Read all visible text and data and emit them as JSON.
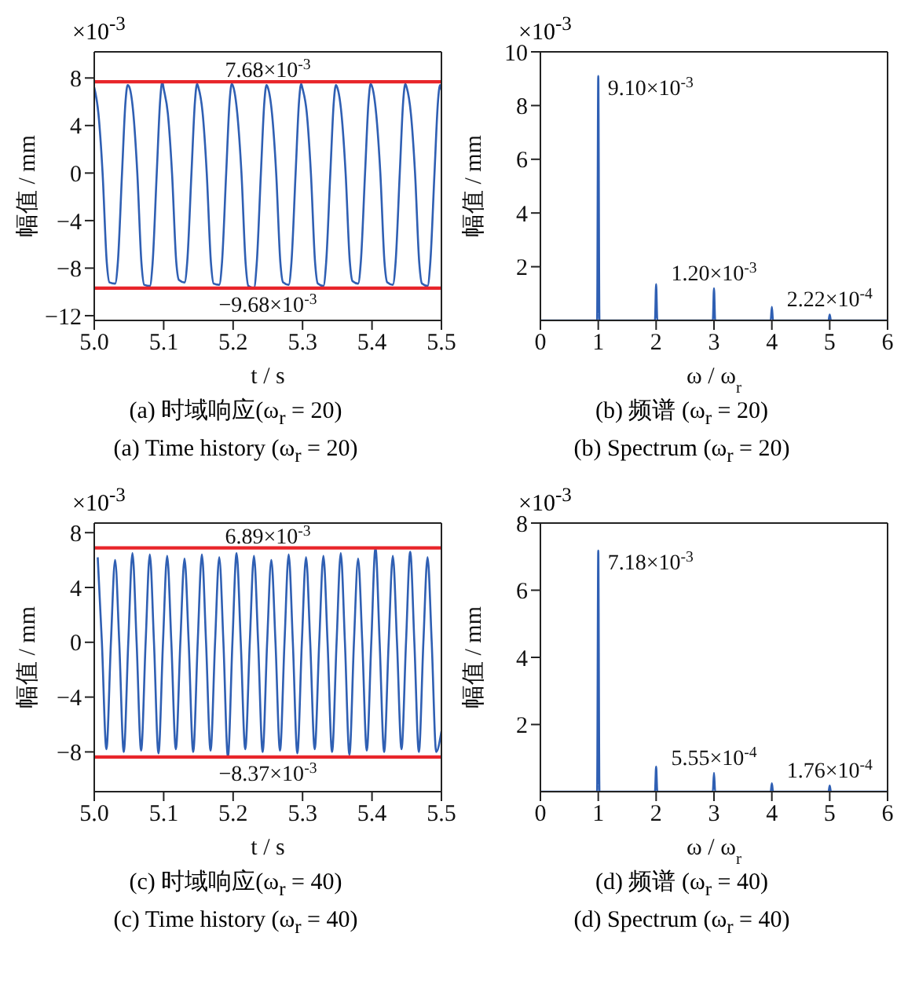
{
  "chart_data": [
    {
      "type": "line",
      "title": "(a) 时域响应(ω$_{r}$ = 20)",
      "subtitle": "(a) Time history (ω$_{r}$ = 20)",
      "xlabel": "t / s",
      "ylabel": "幅值 / mm",
      "annotations": [
        "×10$^{-3}$"
      ],
      "marker": "none",
      "line_style": "solid",
      "series": [
        {
          "color": "#2f5fb3",
          "x": [
            5,
            5.006,
            5.012,
            5.018,
            5.022,
            5.03,
            5.034,
            5.04,
            5.045,
            5.048,
            5.05,
            5.056,
            5.062,
            5.068,
            5.072,
            5.08,
            5.084,
            5.09,
            5.095,
            5.098,
            5.1,
            5.106,
            5.112,
            5.118,
            5.122,
            5.13,
            5.134,
            5.14,
            5.145,
            5.148,
            5.15,
            5.156,
            5.162,
            5.168,
            5.172,
            5.18,
            5.184,
            5.19,
            5.195,
            5.198,
            5.2,
            5.206,
            5.212,
            5.218,
            5.222,
            5.23,
            5.234,
            5.24,
            5.245,
            5.248,
            5.25,
            5.256,
            5.262,
            5.268,
            5.272,
            5.28,
            5.284,
            5.29,
            5.295,
            5.298,
            5.3,
            5.306,
            5.312,
            5.318,
            5.322,
            5.33,
            5.334,
            5.34,
            5.345,
            5.348,
            5.35,
            5.356,
            5.362,
            5.368,
            5.372,
            5.38,
            5.384,
            5.39,
            5.395,
            5.398,
            5.4,
            5.406,
            5.412,
            5.418,
            5.422,
            5.43,
            5.434,
            5.44,
            5.445,
            5.448,
            5.45,
            5.456,
            5.462,
            5.468,
            5.472,
            5.48,
            5.484,
            5.49,
            5.495,
            5.498,
            5.5
          ],
          "values": [
            7.2,
            5,
            0,
            -7.5,
            -9.2,
            -9.3,
            -7.5,
            0,
            6,
            7.4,
            7.3,
            5.2,
            0,
            -7.6,
            -9.4,
            -9.5,
            -7.6,
            0,
            6.2,
            7.68,
            7.1,
            5,
            0,
            -7.4,
            -9,
            -9.2,
            -7.4,
            0,
            6,
            7.5,
            7.2,
            5.1,
            0,
            -7.5,
            -9.3,
            -9.4,
            -7.5,
            0,
            6.1,
            7.5,
            7.3,
            5,
            0,
            -7.6,
            -9.5,
            -9.68,
            -7.6,
            0,
            6,
            7.4,
            7.2,
            5,
            0,
            -7.5,
            -9.2,
            -9.4,
            -7.5,
            0,
            6.1,
            7.5,
            7.1,
            5.1,
            0,
            -7.5,
            -9.3,
            -9.5,
            -7.5,
            0,
            6,
            7.4,
            7.2,
            5,
            0,
            -7.4,
            -9.1,
            -9.3,
            -7.4,
            0,
            6,
            7.5,
            7.3,
            5,
            0,
            -7.5,
            -9.2,
            -9.4,
            -7.5,
            0,
            6.1,
            7.5,
            7.2,
            5,
            0,
            -7.5,
            -9.3,
            -9.5,
            -7.5,
            0,
            6,
            7.4,
            7
          ]
        }
      ],
      "xlim": [
        5,
        5.5
      ],
      "xticks": [
        {
          "value": 5,
          "label": "5.0"
        },
        5.1,
        5.2,
        5.3,
        5.4,
        5.5
      ],
      "ylim": [
        -12.4,
        10.2
      ],
      "yticks": [
        {
          "value": -12,
          "label": "−12"
        },
        {
          "value": -8,
          "label": "−8"
        },
        {
          "value": -4,
          "label": "−4"
        },
        0,
        4,
        8
      ],
      "ref_lines": [
        {
          "axis": "y",
          "value": 7.68,
          "label": "7.68×10$^{-3}$",
          "color": "#e8252a"
        },
        {
          "axis": "y",
          "value": -9.68,
          "label": "−9.68×10$^{-3}$",
          "color": "#e8252a"
        }
      ]
    },
    {
      "type": "line",
      "title": "(b) 频谱 (ω$_{r}$ = 20)",
      "subtitle": "(b) Spectrum (ω$_{r}$ = 20)",
      "xlabel": "ω / ω$_{r}$",
      "ylabel": "幅值 / mm",
      "annotations": [
        "×10$^{-3}$",
        {
          "text": "9.10×10$^{-3}$",
          "x": 1,
          "y": 9.1
        },
        {
          "text": "1.20×10$^{-3}$",
          "x": 3,
          "y": 1.2
        },
        {
          "text": "2.22×10$^{-4}$",
          "x": 5,
          "y": 0.22
        }
      ],
      "marker": "none",
      "line_style": "solid",
      "series": [
        {
          "color": "#2f5fb3",
          "x": [
            0,
            0.98,
            1,
            1.02,
            1.98,
            2,
            2.02,
            2.98,
            3,
            3.02,
            3.98,
            4,
            4.02,
            4.98,
            5,
            5.02,
            6
          ],
          "values": [
            0,
            0,
            9.1,
            0,
            0,
            1.35,
            0,
            0,
            1.2,
            0,
            0,
            0.5,
            0,
            0,
            0.22,
            0,
            0
          ]
        }
      ],
      "xlim": [
        0,
        6
      ],
      "xticks": [
        0,
        1,
        2,
        3,
        4,
        5,
        6
      ],
      "ylim": [
        0,
        10
      ],
      "yticks": [
        2,
        4,
        6,
        8,
        10
      ]
    },
    {
      "type": "line",
      "title": "(c) 时域响应(ω$_{r}$ = 40)",
      "subtitle": "(c) Time history (ω$_{r}$ = 40)",
      "xlabel": "t / s",
      "ylabel": "幅值 / mm",
      "annotations": [
        "×10$^{-3}$"
      ],
      "marker": "none",
      "line_style": "solid",
      "series": [
        {
          "color": "#2f5fb3",
          "x": [
            5.005,
            5.011,
            5.0175,
            5.024,
            5.03,
            5.036,
            5.0425,
            5.049,
            5.055,
            5.061,
            5.0675,
            5.074,
            5.08,
            5.086,
            5.0925,
            5.099,
            5.105,
            5.111,
            5.1175,
            5.124,
            5.13,
            5.136,
            5.1425,
            5.149,
            5.155,
            5.161,
            5.1675,
            5.174,
            5.18,
            5.186,
            5.1925,
            5.199,
            5.205,
            5.211,
            5.2175,
            5.224,
            5.23,
            5.236,
            5.2425,
            5.249,
            5.255,
            5.261,
            5.2675,
            5.274,
            5.28,
            5.286,
            5.2925,
            5.299,
            5.305,
            5.311,
            5.3175,
            5.324,
            5.33,
            5.336,
            5.3425,
            5.349,
            5.355,
            5.361,
            5.3675,
            5.374,
            5.38,
            5.386,
            5.3925,
            5.399,
            5.405,
            5.411,
            5.4175,
            5.424,
            5.43,
            5.436,
            5.4425,
            5.449,
            5.455,
            5.461,
            5.4675,
            5.474,
            5.48,
            5.486,
            5.4925,
            5.5
          ],
          "values": [
            6.2,
            0,
            -7.8,
            0,
            6,
            0,
            -8,
            0,
            6.5,
            0,
            -7.9,
            0,
            6.4,
            0,
            -8.1,
            0,
            6.3,
            0,
            -7.8,
            0,
            6.1,
            0,
            -8,
            0,
            6.4,
            0,
            -7.9,
            0,
            6.2,
            0,
            -8.37,
            0,
            6.5,
            0,
            -7.8,
            0,
            6.3,
            0,
            -8,
            0,
            6,
            0,
            -7.9,
            0,
            6.4,
            0,
            -8.1,
            0,
            6.2,
            0,
            -7.8,
            0,
            6.3,
            0,
            -8,
            0,
            6.5,
            0,
            -8.2,
            0,
            6.1,
            0,
            -7.9,
            0,
            6.89,
            0,
            -8,
            0,
            6.3,
            0,
            -7.8,
            0,
            6.6,
            0,
            -8,
            0,
            6.2,
            0,
            -8,
            -6.5
          ]
        }
      ],
      "xlim": [
        5,
        5.5
      ],
      "xticks": [
        {
          "value": 5,
          "label": "5.0"
        },
        5.1,
        5.2,
        5.3,
        5.4,
        5.5
      ],
      "ylim": [
        -10.9,
        8.7
      ],
      "yticks": [
        {
          "value": -8,
          "label": "−8"
        },
        {
          "value": -4,
          "label": "−4"
        },
        0,
        4,
        8
      ],
      "ref_lines": [
        {
          "axis": "y",
          "value": 6.89,
          "label": "6.89×10$^{-3}$",
          "color": "#e8252a"
        },
        {
          "axis": "y",
          "value": -8.37,
          "label": "−8.37×10$^{-3}$",
          "color": "#e8252a"
        }
      ]
    },
    {
      "type": "line",
      "title": "(d) 频谱 (ω$_{r}$ = 40)",
      "subtitle": "(d) Spectrum (ω$_{r}$ = 40)",
      "xlabel": "ω / ω$_{r}$",
      "ylabel": "幅值 / mm",
      "annotations": [
        "×10$^{-3}$",
        {
          "text": "7.18×10$^{-3}$",
          "x": 1,
          "y": 7.18
        },
        {
          "text": "5.55×10$^{-4}$",
          "x": 3,
          "y": 0.56
        },
        {
          "text": "1.76×10$^{-4}$",
          "x": 5,
          "y": 0.18
        }
      ],
      "marker": "none",
      "line_style": "solid",
      "series": [
        {
          "color": "#2f5fb3",
          "x": [
            0,
            0.98,
            1,
            1.02,
            1.98,
            2,
            2.02,
            2.98,
            3,
            3.02,
            3.98,
            4,
            4.02,
            4.98,
            5,
            5.02,
            6
          ],
          "values": [
            0,
            0,
            7.18,
            0,
            0,
            0.75,
            0,
            0,
            0.56,
            0,
            0,
            0.25,
            0,
            0,
            0.18,
            0,
            0
          ]
        }
      ],
      "xlim": [
        0,
        6
      ],
      "xticks": [
        0,
        1,
        2,
        3,
        4,
        5,
        6
      ],
      "ylim": [
        0,
        8
      ],
      "yticks": [
        2,
        4,
        6,
        8
      ]
    }
  ]
}
